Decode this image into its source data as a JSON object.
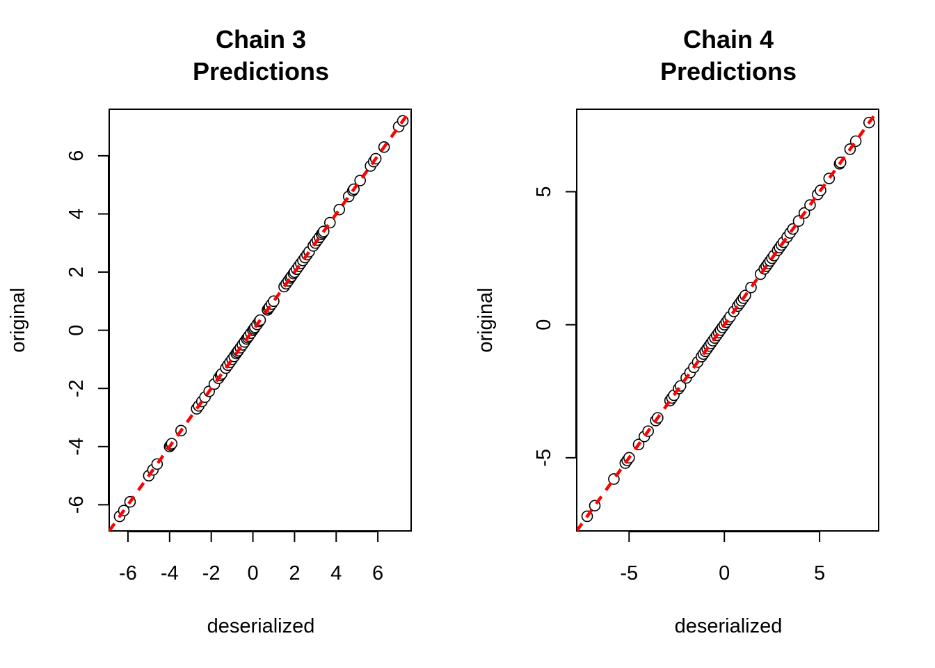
{
  "colors": {
    "points_stroke": "#000000",
    "points_fill": "#ffffff",
    "reference_line": "#ff0000",
    "frame": "#000000"
  },
  "chart_data": [
    {
      "type": "scatter",
      "title_line1": "Chain 3",
      "title_line2": "Predictions",
      "xlabel": "deserialized",
      "ylabel": "original",
      "xlim": [
        -6.9,
        7.6
      ],
      "ylim": [
        -6.9,
        7.6
      ],
      "xticks": [
        -6,
        -4,
        -2,
        0,
        2,
        4,
        6
      ],
      "yticks": [
        -6,
        -4,
        -2,
        0,
        2,
        4,
        6
      ],
      "grid": false,
      "reference_line": {
        "slope": 1,
        "intercept": 0,
        "style": "dashed",
        "color": "#ff0000"
      },
      "x": [
        -6.4,
        -6.2,
        -5.9,
        -5.0,
        -4.8,
        -4.6,
        -4.0,
        -3.95,
        -3.9,
        -3.45,
        -2.7,
        -2.6,
        -2.45,
        -2.3,
        -2.1,
        -1.85,
        -1.65,
        -1.55,
        -1.5,
        -1.3,
        -1.2,
        -1.1,
        -1.0,
        -0.9,
        -0.8,
        -0.75,
        -0.7,
        -0.6,
        -0.5,
        -0.4,
        -0.3,
        -0.25,
        -0.2,
        -0.1,
        0.0,
        0.05,
        0.1,
        0.2,
        0.3,
        0.35,
        0.7,
        0.75,
        0.8,
        0.9,
        1.0,
        1.5,
        1.6,
        1.7,
        1.8,
        1.85,
        1.95,
        2.0,
        2.1,
        2.2,
        2.3,
        2.4,
        2.5,
        2.6,
        2.7,
        2.9,
        3.0,
        3.1,
        3.2,
        3.3,
        3.35,
        3.4,
        3.7,
        4.15,
        4.6,
        4.8,
        4.85,
        5.15,
        5.65,
        5.8,
        5.9,
        6.3,
        7.0,
        7.2
      ],
      "y": [
        -6.4,
        -6.2,
        -5.9,
        -5.0,
        -4.8,
        -4.6,
        -4.0,
        -3.95,
        -3.9,
        -3.45,
        -2.7,
        -2.6,
        -2.45,
        -2.3,
        -2.1,
        -1.85,
        -1.65,
        -1.55,
        -1.5,
        -1.3,
        -1.2,
        -1.1,
        -1.0,
        -0.9,
        -0.8,
        -0.75,
        -0.7,
        -0.6,
        -0.5,
        -0.4,
        -0.3,
        -0.25,
        -0.2,
        -0.1,
        0.0,
        0.05,
        0.1,
        0.2,
        0.3,
        0.35,
        0.7,
        0.75,
        0.8,
        0.9,
        1.0,
        1.5,
        1.6,
        1.7,
        1.8,
        1.85,
        1.95,
        2.0,
        2.1,
        2.2,
        2.3,
        2.4,
        2.5,
        2.6,
        2.7,
        2.9,
        3.0,
        3.1,
        3.2,
        3.3,
        3.35,
        3.4,
        3.7,
        4.15,
        4.6,
        4.8,
        4.85,
        5.15,
        5.65,
        5.8,
        5.9,
        6.3,
        7.0,
        7.2
      ]
    },
    {
      "type": "scatter",
      "title_line1": "Chain 4",
      "title_line2": "Predictions",
      "xlabel": "deserialized",
      "ylabel": "original",
      "xlim": [
        -7.75,
        8.1
      ],
      "ylim": [
        -7.75,
        8.1
      ],
      "xticks": [
        -5,
        0,
        5
      ],
      "yticks": [
        -5,
        0,
        5
      ],
      "grid": false,
      "reference_line": {
        "slope": 1,
        "intercept": 0,
        "style": "dashed",
        "color": "#ff0000"
      },
      "x": [
        -7.2,
        -6.8,
        -5.8,
        -5.2,
        -5.1,
        -5.0,
        -4.5,
        -4.2,
        -4.0,
        -3.6,
        -3.5,
        -2.85,
        -2.75,
        -2.65,
        -2.4,
        -2.3,
        -2.0,
        -1.8,
        -1.6,
        -1.4,
        -1.2,
        -1.1,
        -1.0,
        -0.9,
        -0.8,
        -0.7,
        -0.6,
        -0.5,
        -0.4,
        -0.3,
        -0.2,
        -0.1,
        0.0,
        0.1,
        0.2,
        0.3,
        0.5,
        0.7,
        0.8,
        0.9,
        1.0,
        1.1,
        1.4,
        1.9,
        2.1,
        2.2,
        2.3,
        2.4,
        2.5,
        2.6,
        2.8,
        2.9,
        3.0,
        3.1,
        3.3,
        3.45,
        3.6,
        3.9,
        4.2,
        4.5,
        4.9,
        5.05,
        5.5,
        6.05,
        6.1,
        6.6,
        6.9,
        7.6
      ],
      "y": [
        -7.2,
        -6.8,
        -5.8,
        -5.2,
        -5.1,
        -5.0,
        -4.5,
        -4.2,
        -4.0,
        -3.6,
        -3.5,
        -2.85,
        -2.75,
        -2.65,
        -2.4,
        -2.3,
        -2.0,
        -1.8,
        -1.6,
        -1.4,
        -1.2,
        -1.1,
        -1.0,
        -0.9,
        -0.8,
        -0.7,
        -0.6,
        -0.5,
        -0.4,
        -0.3,
        -0.2,
        -0.1,
        0.0,
        0.1,
        0.2,
        0.3,
        0.5,
        0.7,
        0.8,
        0.9,
        1.0,
        1.1,
        1.4,
        1.9,
        2.1,
        2.2,
        2.3,
        2.4,
        2.5,
        2.6,
        2.8,
        2.9,
        3.0,
        3.1,
        3.3,
        3.45,
        3.6,
        3.9,
        4.2,
        4.5,
        4.9,
        5.05,
        5.5,
        6.05,
        6.1,
        6.6,
        6.9,
        7.6
      ]
    }
  ]
}
